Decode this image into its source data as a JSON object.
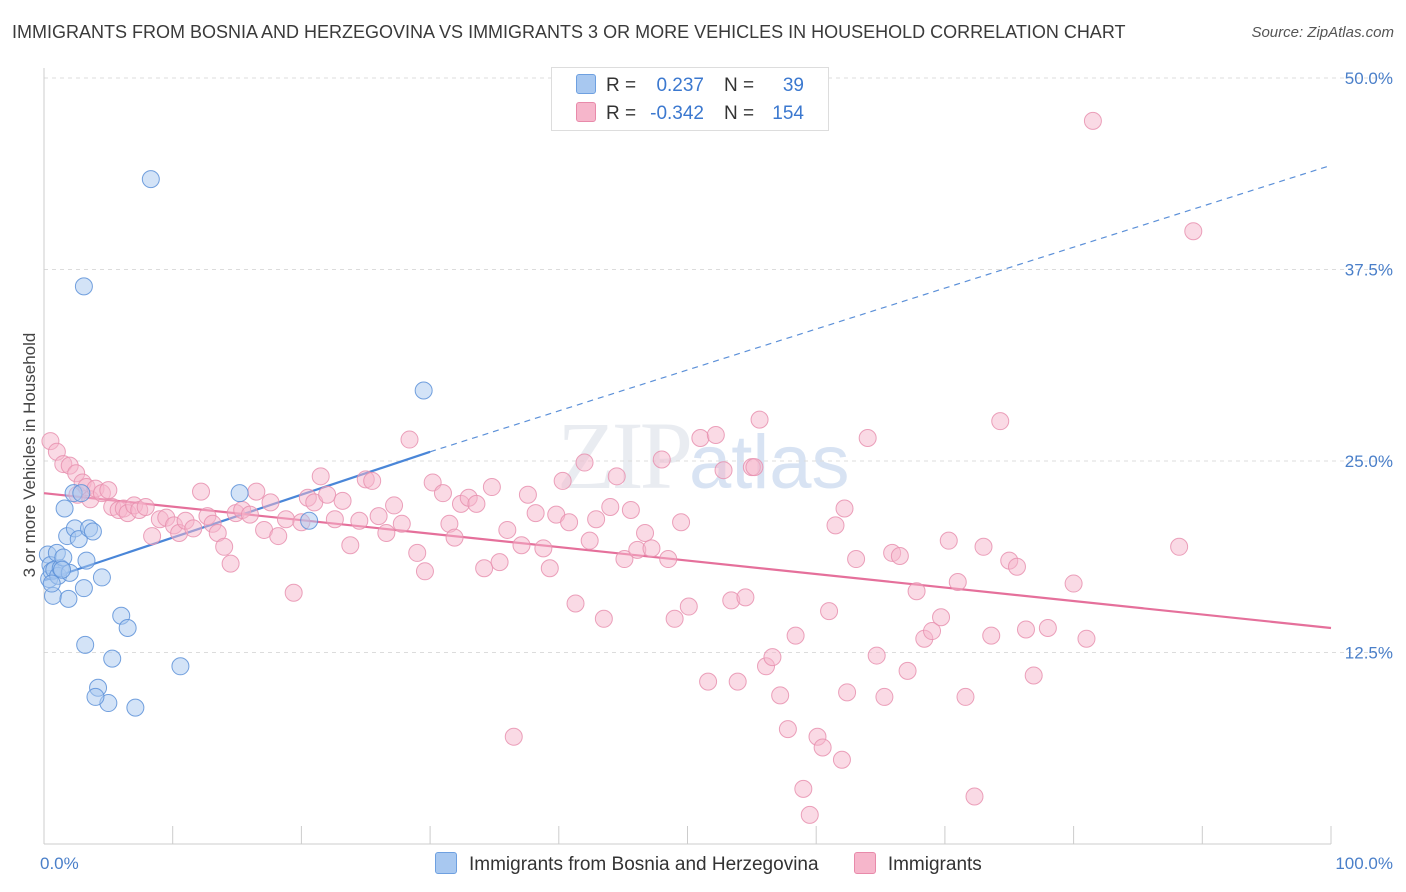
{
  "title": "IMMIGRANTS FROM BOSNIA AND HERZEGOVINA VS IMMIGRANTS 3 OR MORE VEHICLES IN HOUSEHOLD CORRELATION CHART",
  "source": "Source: ZipAtlas.com",
  "watermark": {
    "zip": "ZIP",
    "atlas": "atlas"
  },
  "legend": {
    "rows": [
      {
        "r_label": "R =",
        "r_value": "0.237",
        "n_label": "N =",
        "n_value": "39",
        "color": "#a8c8f0"
      },
      {
        "r_label": "R =",
        "r_value": "-0.342",
        "n_label": "N =",
        "n_value": "154",
        "color": "#f6b6cb"
      }
    ]
  },
  "bottom_legend": [
    {
      "label": "Immigrants from Bosnia and Herzegovina",
      "color": "#a8c8f0"
    },
    {
      "label": "Immigrants",
      "color": "#f6b6cb"
    }
  ],
  "chart_data": {
    "type": "scatter",
    "title": "IMMIGRANTS FROM BOSNIA AND HERZEGOVINA VS IMMIGRANTS 3 OR MORE VEHICLES IN HOUSEHOLD CORRELATION CHART",
    "xlabel": "",
    "ylabel": "3 or more Vehicles in Household",
    "xlim": [
      0,
      100
    ],
    "ylim": [
      0,
      50
    ],
    "x_tick_labels": [
      "0.0%",
      "100.0%"
    ],
    "y_ticks": [
      12.5,
      25.0,
      37.5,
      50.0
    ],
    "y_tick_labels": [
      "12.5%",
      "25.0%",
      "37.5%",
      "50.0%"
    ],
    "grid": true,
    "series": [
      {
        "name": "Immigrants from Bosnia and Herzegovina",
        "color": "#4a86d8",
        "fill": "#a8c8f0",
        "trend": {
          "x": [
            0,
            30
          ],
          "y": [
            17.2,
            25.6
          ],
          "dashed_extension_to": [
            100,
            44.3
          ]
        },
        "points": [
          [
            0.3,
            18.9
          ],
          [
            0.4,
            17.3
          ],
          [
            0.5,
            18.2
          ],
          [
            0.6,
            17.8
          ],
          [
            0.7,
            16.2
          ],
          [
            0.8,
            17.9
          ],
          [
            1.0,
            19.0
          ],
          [
            1.1,
            17.5
          ],
          [
            1.3,
            18.0
          ],
          [
            1.5,
            18.7
          ],
          [
            1.6,
            21.9
          ],
          [
            1.8,
            20.1
          ],
          [
            1.9,
            16.0
          ],
          [
            2.0,
            17.7
          ],
          [
            2.3,
            22.9
          ],
          [
            2.4,
            20.6
          ],
          [
            2.7,
            19.9
          ],
          [
            2.9,
            22.9
          ],
          [
            3.1,
            16.7
          ],
          [
            3.3,
            18.5
          ],
          [
            3.5,
            20.6
          ],
          [
            3.2,
            13.0
          ],
          [
            3.8,
            20.4
          ],
          [
            4.5,
            17.4
          ],
          [
            3.1,
            36.4
          ],
          [
            4.2,
            10.2
          ],
          [
            5.0,
            9.2
          ],
          [
            5.3,
            12.1
          ],
          [
            6.0,
            14.9
          ],
          [
            6.5,
            14.1
          ],
          [
            4.0,
            9.6
          ],
          [
            7.1,
            8.9
          ],
          [
            8.3,
            43.4
          ],
          [
            10.6,
            11.6
          ],
          [
            15.2,
            22.9
          ],
          [
            20.6,
            21.1
          ],
          [
            29.5,
            29.6
          ],
          [
            0.6,
            17.0
          ],
          [
            1.4,
            17.9
          ]
        ]
      },
      {
        "name": "Immigrants",
        "color": "#e5709b",
        "fill": "#f6b6cb",
        "trend": {
          "x": [
            0,
            100
          ],
          "y": [
            22.9,
            14.1
          ]
        },
        "points": [
          [
            0.5,
            26.3
          ],
          [
            1.0,
            25.6
          ],
          [
            1.5,
            24.8
          ],
          [
            2.0,
            24.7
          ],
          [
            2.5,
            24.2
          ],
          [
            2.6,
            22.8
          ],
          [
            3.0,
            23.6
          ],
          [
            3.3,
            23.3
          ],
          [
            3.6,
            22.5
          ],
          [
            4.0,
            23.2
          ],
          [
            4.5,
            22.9
          ],
          [
            5.0,
            23.1
          ],
          [
            5.3,
            22.0
          ],
          [
            5.8,
            21.8
          ],
          [
            6.2,
            21.9
          ],
          [
            6.5,
            21.6
          ],
          [
            7.0,
            22.1
          ],
          [
            7.4,
            21.8
          ],
          [
            7.9,
            22.0
          ],
          [
            8.4,
            20.1
          ],
          [
            9.0,
            21.2
          ],
          [
            9.5,
            21.3
          ],
          [
            10.1,
            20.8
          ],
          [
            10.5,
            20.3
          ],
          [
            11.0,
            21.1
          ],
          [
            11.6,
            20.6
          ],
          [
            12.2,
            23.0
          ],
          [
            12.7,
            21.4
          ],
          [
            13.1,
            20.9
          ],
          [
            13.5,
            20.3
          ],
          [
            14.0,
            19.4
          ],
          [
            14.5,
            18.3
          ],
          [
            14.9,
            21.6
          ],
          [
            15.4,
            21.8
          ],
          [
            16.0,
            21.5
          ],
          [
            16.5,
            23.0
          ],
          [
            17.1,
            20.5
          ],
          [
            17.6,
            22.3
          ],
          [
            18.2,
            20.1
          ],
          [
            18.8,
            21.2
          ],
          [
            19.4,
            16.4
          ],
          [
            20.0,
            21.0
          ],
          [
            20.5,
            22.6
          ],
          [
            21.0,
            22.3
          ],
          [
            21.5,
            24.0
          ],
          [
            22.0,
            22.8
          ],
          [
            22.6,
            21.2
          ],
          [
            23.2,
            22.4
          ],
          [
            23.8,
            19.5
          ],
          [
            24.5,
            21.1
          ],
          [
            25.0,
            23.8
          ],
          [
            25.5,
            23.7
          ],
          [
            26.0,
            21.4
          ],
          [
            26.6,
            20.3
          ],
          [
            27.2,
            22.1
          ],
          [
            27.8,
            20.9
          ],
          [
            28.4,
            26.4
          ],
          [
            29.0,
            19.0
          ],
          [
            29.6,
            17.8
          ],
          [
            30.2,
            23.6
          ],
          [
            31.0,
            22.9
          ],
          [
            31.5,
            20.9
          ],
          [
            31.9,
            20.0
          ],
          [
            32.4,
            22.2
          ],
          [
            33.0,
            22.6
          ],
          [
            33.6,
            22.2
          ],
          [
            34.2,
            18.0
          ],
          [
            34.8,
            23.3
          ],
          [
            35.4,
            18.4
          ],
          [
            36.0,
            20.5
          ],
          [
            36.5,
            7.0
          ],
          [
            37.1,
            19.5
          ],
          [
            37.6,
            22.8
          ],
          [
            38.2,
            21.6
          ],
          [
            38.8,
            19.3
          ],
          [
            39.3,
            18.0
          ],
          [
            39.8,
            21.5
          ],
          [
            40.3,
            23.7
          ],
          [
            40.8,
            21.0
          ],
          [
            41.3,
            15.7
          ],
          [
            42.0,
            24.9
          ],
          [
            42.4,
            19.8
          ],
          [
            42.9,
            21.2
          ],
          [
            43.5,
            14.7
          ],
          [
            44.0,
            22.0
          ],
          [
            44.5,
            24.0
          ],
          [
            45.1,
            18.6
          ],
          [
            45.6,
            21.8
          ],
          [
            46.1,
            19.2
          ],
          [
            46.7,
            20.3
          ],
          [
            47.2,
            19.3
          ],
          [
            48.0,
            25.1
          ],
          [
            48.5,
            18.6
          ],
          [
            49.0,
            14.7
          ],
          [
            49.5,
            21.0
          ],
          [
            50.1,
            15.5
          ],
          [
            51.0,
            26.5
          ],
          [
            51.6,
            10.6
          ],
          [
            52.2,
            26.7
          ],
          [
            52.8,
            24.4
          ],
          [
            53.4,
            15.9
          ],
          [
            53.9,
            10.6
          ],
          [
            54.5,
            16.1
          ],
          [
            55.0,
            24.6
          ],
          [
            55.6,
            27.7
          ],
          [
            56.1,
            11.6
          ],
          [
            56.6,
            12.2
          ],
          [
            57.2,
            9.7
          ],
          [
            57.8,
            7.5
          ],
          [
            58.4,
            13.6
          ],
          [
            59.0,
            3.6
          ],
          [
            59.5,
            1.9
          ],
          [
            60.1,
            7.0
          ],
          [
            60.5,
            6.3
          ],
          [
            61.0,
            15.2
          ],
          [
            61.5,
            20.8
          ],
          [
            62.0,
            5.5
          ],
          [
            62.4,
            9.9
          ],
          [
            63.1,
            18.6
          ],
          [
            64.0,
            26.5
          ],
          [
            64.7,
            12.3
          ],
          [
            65.3,
            9.6
          ],
          [
            65.9,
            19.0
          ],
          [
            66.5,
            18.8
          ],
          [
            67.1,
            11.3
          ],
          [
            67.8,
            16.5
          ],
          [
            68.4,
            13.4
          ],
          [
            69.0,
            13.9
          ],
          [
            69.7,
            14.8
          ],
          [
            70.3,
            19.8
          ],
          [
            71.0,
            17.1
          ],
          [
            71.6,
            9.6
          ],
          [
            72.3,
            3.1
          ],
          [
            73.0,
            19.4
          ],
          [
            73.6,
            13.6
          ],
          [
            74.3,
            27.6
          ],
          [
            75.0,
            18.5
          ],
          [
            75.6,
            18.1
          ],
          [
            76.3,
            14.0
          ],
          [
            76.9,
            11.0
          ],
          [
            78.0,
            14.1
          ],
          [
            80.0,
            17.0
          ],
          [
            81.0,
            13.4
          ],
          [
            81.5,
            47.2
          ],
          [
            88.2,
            19.4
          ],
          [
            89.3,
            40.0
          ],
          [
            62.2,
            21.9
          ],
          [
            55.2,
            24.6
          ]
        ]
      }
    ]
  }
}
